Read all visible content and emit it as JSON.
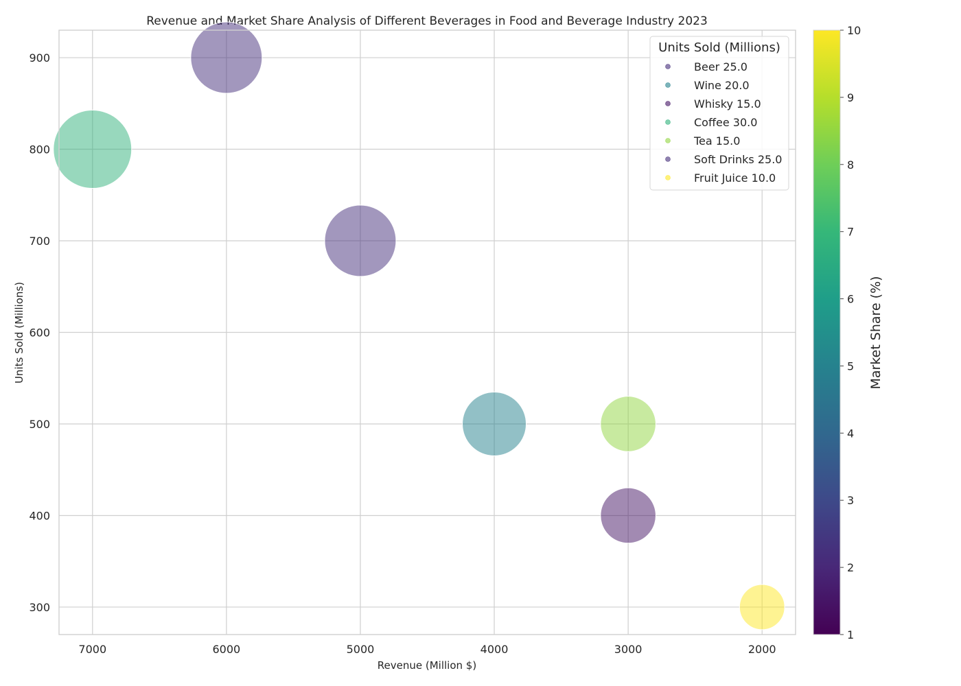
{
  "chart_data": {
    "type": "scatter",
    "title": "Revenue and Market Share Analysis of Different Beverages in Food and Beverage Industry 2023",
    "xlabel": "Revenue (Million $)",
    "ylabel": "Units Sold (Millions)",
    "x_inverted": true,
    "xlim": [
      7250,
      1750
    ],
    "ylim": [
      270,
      930
    ],
    "xticks": [
      7000,
      6000,
      5000,
      4000,
      3000,
      2000
    ],
    "yticks": [
      300,
      400,
      500,
      600,
      700,
      800,
      900
    ],
    "grid": true,
    "legend": {
      "title": "Units Sold (Millions)",
      "placement": "top-right"
    },
    "colorbar": {
      "label": "Market Share (%)",
      "colormap": "viridis",
      "range": [
        1,
        10
      ],
      "ticks": [
        1,
        2,
        3,
        4,
        5,
        6,
        7,
        8,
        9,
        10
      ]
    },
    "series": [
      {
        "name": "Beer",
        "legend_label": "Beer 25.0",
        "revenue": 6000,
        "units_sold": 900,
        "bubble_size_value": 25.0,
        "market_share": 2.2
      },
      {
        "name": "Wine",
        "legend_label": "Wine 20.0",
        "revenue": 4000,
        "units_sold": 500,
        "bubble_size_value": 20.0,
        "market_share": 5.0
      },
      {
        "name": "Whisky",
        "legend_label": "Whisky 15.0",
        "revenue": 3000,
        "units_sold": 400,
        "bubble_size_value": 15.0,
        "market_share": 1.5
      },
      {
        "name": "Coffee",
        "legend_label": "Coffee 30.0",
        "revenue": 7000,
        "units_sold": 800,
        "bubble_size_value": 30.0,
        "market_share": 6.8
      },
      {
        "name": "Tea",
        "legend_label": "Tea 15.0",
        "revenue": 3000,
        "units_sold": 500,
        "bubble_size_value": 15.0,
        "market_share": 8.5
      },
      {
        "name": "Soft Drinks",
        "legend_label": "Soft Drinks 25.0",
        "revenue": 5000,
        "units_sold": 700,
        "bubble_size_value": 25.0,
        "market_share": 2.2
      },
      {
        "name": "Fruit Juice",
        "legend_label": "Fruit Juice 10.0",
        "revenue": 2000,
        "units_sold": 300,
        "bubble_size_value": 10.0,
        "market_share": 10.0
      }
    ]
  }
}
